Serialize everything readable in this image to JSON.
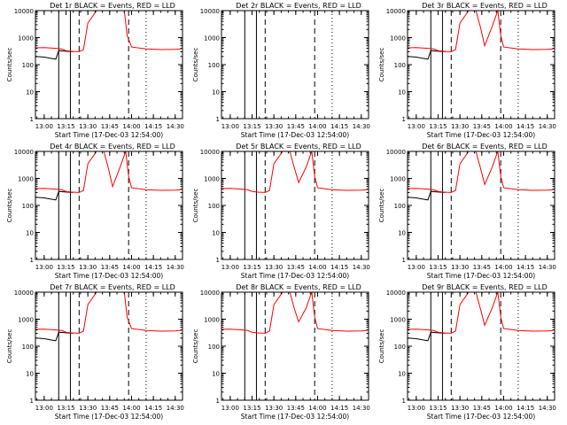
{
  "figure": {
    "title_template": "Det {id}r  BLACK = Events, RED = LLD",
    "xlabel": "Start Time (17-Dec-03 12:54:00)",
    "ylabel": "Counts/sec"
  },
  "chart_data": [
    {
      "type": "line",
      "detector": "1",
      "title": "Det 1r  BLACK = Events, RED = LLD",
      "xlabel": "Start Time (17-Dec-03 12:54:00)",
      "ylabel": "Counts/sec",
      "xlim": [
        "12:54",
        "14:35"
      ],
      "x_ticks": [
        "13:00",
        "13:15",
        "13:30",
        "13:45",
        "14:00",
        "14:15",
        "14:30"
      ],
      "ylim": [
        1,
        10000
      ],
      "y_scale": "log",
      "y_ticks": [
        "1",
        "10",
        "100",
        "1000",
        "10000"
      ],
      "series": [
        {
          "name": "Events",
          "color": "black",
          "x": [
            "12:54",
            "13:00",
            "13:05",
            "13:08",
            "13:10",
            "13:16",
            "13:20"
          ],
          "values": [
            200,
            190,
            170,
            160,
            330,
            310,
            300
          ]
        },
        {
          "name": "LLD",
          "color": "red",
          "x": [
            "12:54",
            "13:00",
            "13:08",
            "13:12",
            "13:15",
            "13:19",
            "13:24",
            "13:27",
            "13:30",
            "13:36",
            "13:43",
            "13:48",
            "13:55",
            "13:57",
            "14:00",
            "14:10",
            "14:20",
            "14:30",
            "14:34"
          ],
          "values": [
            420,
            430,
            400,
            380,
            330,
            310,
            300,
            360,
            3500,
            10000,
            10000,
            10000,
            10000,
            1200,
            450,
            380,
            360,
            370,
            380
          ]
        }
      ],
      "markers": {
        "solid_vertical": [
          "13:10",
          "13:18"
        ],
        "dashed_vertical": [
          "13:24",
          "13:58"
        ],
        "dotted_vertical": [
          "14:10"
        ]
      }
    },
    {
      "type": "line",
      "detector": "2",
      "title": "Det 2r  BLACK = Events, RED = LLD",
      "xlabel": "Start Time (17-Dec-03 12:54:00)",
      "ylabel": "Counts/sec",
      "xlim": [
        "12:54",
        "14:35"
      ],
      "x_ticks": [
        "13:00",
        "13:15",
        "13:30",
        "13:45",
        "14:00",
        "14:15",
        "14:30"
      ],
      "ylim": [
        1,
        10000
      ],
      "y_scale": "log",
      "y_ticks": [
        "1",
        "10",
        "100",
        "1000",
        "10000"
      ],
      "series": [],
      "markers": {
        "solid_vertical": [
          "13:10",
          "13:18"
        ],
        "dashed_vertical": [
          "13:24",
          "13:58"
        ],
        "dotted_vertical": [
          "14:10"
        ]
      }
    },
    {
      "type": "line",
      "detector": "3",
      "title": "Det 3r  BLACK = Events, RED = LLD",
      "xlabel": "Start Time (17-Dec-03 12:54:00)",
      "ylabel": "Counts/sec",
      "xlim": [
        "12:54",
        "14:35"
      ],
      "x_ticks": [
        "13:00",
        "13:15",
        "13:30",
        "13:45",
        "14:00",
        "14:15",
        "14:30"
      ],
      "ylim": [
        1,
        10000
      ],
      "y_scale": "log",
      "y_ticks": [
        "1",
        "10",
        "100",
        "1000",
        "10000"
      ],
      "series": [
        {
          "name": "Events",
          "color": "black",
          "x": [
            "12:54",
            "13:00",
            "13:05",
            "13:08",
            "13:10",
            "13:16",
            "13:20"
          ],
          "values": [
            200,
            190,
            170,
            160,
            330,
            310,
            300
          ]
        },
        {
          "name": "LLD",
          "color": "red",
          "x": [
            "12:54",
            "13:00",
            "13:08",
            "13:12",
            "13:15",
            "13:19",
            "13:24",
            "13:27",
            "13:30",
            "13:36",
            "13:41",
            "13:44",
            "13:47",
            "13:52",
            "13:56",
            "13:58",
            "14:00",
            "14:10",
            "14:20",
            "14:30",
            "14:34"
          ],
          "values": [
            420,
            430,
            400,
            380,
            330,
            310,
            300,
            360,
            3500,
            10000,
            10000,
            2500,
            500,
            2500,
            10000,
            1200,
            450,
            380,
            360,
            370,
            380
          ]
        }
      ],
      "markers": {
        "solid_vertical": [
          "13:10",
          "13:18"
        ],
        "dashed_vertical": [
          "13:24",
          "13:58"
        ],
        "dotted_vertical": [
          "14:10"
        ]
      }
    },
    {
      "type": "line",
      "detector": "4",
      "title": "Det 4r  BLACK = Events, RED = LLD",
      "xlabel": "Start Time (17-Dec-03 12:54:00)",
      "ylabel": "Counts/sec",
      "xlim": [
        "12:54",
        "14:35"
      ],
      "x_ticks": [
        "13:00",
        "13:15",
        "13:30",
        "13:45",
        "14:00",
        "14:15",
        "14:30"
      ],
      "ylim": [
        1,
        10000
      ],
      "y_scale": "log",
      "y_ticks": [
        "1",
        "10",
        "100",
        "1000",
        "10000"
      ],
      "series": [
        {
          "name": "Events",
          "color": "black",
          "x": [
            "12:54",
            "13:00",
            "13:05",
            "13:08",
            "13:10",
            "13:16",
            "13:20"
          ],
          "values": [
            200,
            190,
            170,
            160,
            330,
            310,
            300
          ]
        },
        {
          "name": "LLD",
          "color": "red",
          "x": [
            "12:54",
            "13:00",
            "13:08",
            "13:12",
            "13:15",
            "13:19",
            "13:24",
            "13:27",
            "13:30",
            "13:36",
            "13:41",
            "13:44",
            "13:47",
            "13:52",
            "13:56",
            "13:58",
            "14:00",
            "14:10",
            "14:20",
            "14:30",
            "14:34"
          ],
          "values": [
            420,
            430,
            400,
            380,
            330,
            310,
            300,
            360,
            3500,
            10000,
            10000,
            2500,
            500,
            2500,
            10000,
            1200,
            450,
            380,
            360,
            370,
            380
          ]
        }
      ],
      "markers": {
        "solid_vertical": [
          "13:10",
          "13:18"
        ],
        "dashed_vertical": [
          "13:24",
          "13:58"
        ],
        "dotted_vertical": [
          "14:10"
        ]
      }
    },
    {
      "type": "line",
      "detector": "5",
      "title": "Det 5r  BLACK = Events, RED = LLD",
      "xlabel": "Start Time (17-Dec-03 12:54:00)",
      "ylabel": "Counts/sec",
      "xlim": [
        "12:54",
        "14:35"
      ],
      "x_ticks": [
        "13:00",
        "13:15",
        "13:30",
        "13:45",
        "14:00",
        "14:15",
        "14:30"
      ],
      "ylim": [
        1,
        10000
      ],
      "y_scale": "log",
      "y_ticks": [
        "1",
        "10",
        "100",
        "1000",
        "10000"
      ],
      "series": [
        {
          "name": "LLD",
          "color": "red",
          "x": [
            "12:54",
            "13:00",
            "13:08",
            "13:12",
            "13:15",
            "13:19",
            "13:24",
            "13:27",
            "13:30",
            "13:36",
            "13:41",
            "13:44",
            "13:47",
            "13:52",
            "13:56",
            "13:58",
            "14:00",
            "14:10",
            "14:20",
            "14:30",
            "14:34"
          ],
          "values": [
            420,
            430,
            400,
            380,
            330,
            310,
            300,
            360,
            3500,
            10000,
            10000,
            2500,
            700,
            2500,
            10000,
            1200,
            450,
            380,
            360,
            370,
            380
          ]
        }
      ],
      "markers": {
        "solid_vertical": [
          "13:10",
          "13:18"
        ],
        "dashed_vertical": [
          "13:24",
          "13:58"
        ],
        "dotted_vertical": [
          "14:10"
        ]
      }
    },
    {
      "type": "line",
      "detector": "6",
      "title": "Det 6r  BLACK = Events, RED = LLD",
      "xlabel": "Start Time (17-Dec-03 12:54:00)",
      "ylabel": "Counts/sec",
      "xlim": [
        "12:54",
        "14:35"
      ],
      "x_ticks": [
        "13:00",
        "13:15",
        "13:30",
        "13:45",
        "14:00",
        "14:15",
        "14:30"
      ],
      "ylim": [
        1,
        10000
      ],
      "y_scale": "log",
      "y_ticks": [
        "1",
        "10",
        "100",
        "1000",
        "10000"
      ],
      "series": [
        {
          "name": "Events",
          "color": "black",
          "x": [
            "12:54",
            "13:00",
            "13:05",
            "13:08",
            "13:10",
            "13:16",
            "13:20"
          ],
          "values": [
            200,
            190,
            170,
            160,
            330,
            310,
            300
          ]
        },
        {
          "name": "LLD",
          "color": "red",
          "x": [
            "12:54",
            "13:00",
            "13:08",
            "13:12",
            "13:15",
            "13:19",
            "13:24",
            "13:27",
            "13:30",
            "13:36",
            "13:41",
            "13:44",
            "13:47",
            "13:52",
            "13:56",
            "13:58",
            "14:00",
            "14:10",
            "14:20",
            "14:30",
            "14:34"
          ],
          "values": [
            420,
            430,
            400,
            380,
            330,
            310,
            300,
            360,
            3500,
            10000,
            10000,
            2500,
            600,
            2500,
            10000,
            1200,
            450,
            380,
            360,
            370,
            380
          ]
        }
      ],
      "markers": {
        "solid_vertical": [
          "13:10",
          "13:18"
        ],
        "dashed_vertical": [
          "13:24",
          "13:58"
        ],
        "dotted_vertical": [
          "14:10"
        ]
      }
    },
    {
      "type": "line",
      "detector": "7",
      "title": "Det 7r  BLACK = Events, RED = LLD",
      "xlabel": "Start Time (17-Dec-03 12:54:00)",
      "ylabel": "Counts/sec",
      "xlim": [
        "12:54",
        "14:35"
      ],
      "x_ticks": [
        "13:00",
        "13:15",
        "13:30",
        "13:45",
        "14:00",
        "14:15",
        "14:30"
      ],
      "ylim": [
        1,
        10000
      ],
      "y_scale": "log",
      "y_ticks": [
        "1",
        "10",
        "100",
        "1000",
        "10000"
      ],
      "series": [
        {
          "name": "Events",
          "color": "black",
          "x": [
            "12:54",
            "13:00",
            "13:05",
            "13:08",
            "13:10",
            "13:16",
            "13:20"
          ],
          "values": [
            200,
            190,
            170,
            160,
            330,
            310,
            300
          ]
        },
        {
          "name": "LLD",
          "color": "red",
          "x": [
            "12:54",
            "13:00",
            "13:08",
            "13:12",
            "13:15",
            "13:19",
            "13:24",
            "13:27",
            "13:30",
            "13:36",
            "13:43",
            "13:48",
            "13:55",
            "13:57",
            "14:00",
            "14:10",
            "14:20",
            "14:30",
            "14:34"
          ],
          "values": [
            420,
            430,
            400,
            380,
            330,
            310,
            300,
            360,
            3500,
            10000,
            10000,
            10000,
            10000,
            1200,
            450,
            380,
            360,
            370,
            380
          ]
        }
      ],
      "markers": {
        "solid_vertical": [
          "13:10",
          "13:18"
        ],
        "dashed_vertical": [
          "13:24",
          "13:58"
        ],
        "dotted_vertical": [
          "14:10"
        ]
      }
    },
    {
      "type": "line",
      "detector": "8",
      "title": "Det 8r  BLACK = Events, RED = LLD",
      "xlabel": "Start Time (17-Dec-03 12:54:00)",
      "ylabel": "Counts/sec",
      "xlim": [
        "12:54",
        "14:35"
      ],
      "x_ticks": [
        "13:00",
        "13:15",
        "13:30",
        "13:45",
        "14:00",
        "14:15",
        "14:30"
      ],
      "ylim": [
        1,
        10000
      ],
      "y_scale": "log",
      "y_ticks": [
        "1",
        "10",
        "100",
        "1000",
        "10000"
      ],
      "series": [
        {
          "name": "LLD",
          "color": "red",
          "x": [
            "12:54",
            "13:00",
            "13:08",
            "13:12",
            "13:15",
            "13:19",
            "13:24",
            "13:27",
            "13:30",
            "13:36",
            "13:41",
            "13:44",
            "13:47",
            "13:52",
            "13:56",
            "13:58",
            "14:00",
            "14:10",
            "14:20",
            "14:30",
            "14:34"
          ],
          "values": [
            420,
            430,
            400,
            380,
            330,
            310,
            300,
            360,
            3500,
            10000,
            10000,
            2500,
            800,
            2500,
            10000,
            1200,
            450,
            380,
            360,
            370,
            380
          ]
        }
      ],
      "markers": {
        "solid_vertical": [
          "13:10",
          "13:18"
        ],
        "dashed_vertical": [
          "13:24",
          "13:58"
        ],
        "dotted_vertical": [
          "14:10"
        ]
      }
    },
    {
      "type": "line",
      "detector": "9",
      "title": "Det 9r  BLACK = Events, RED = LLD",
      "xlabel": "Start Time (17-Dec-03 12:54:00)",
      "ylabel": "Counts/sec",
      "xlim": [
        "12:54",
        "14:35"
      ],
      "x_ticks": [
        "13:00",
        "13:15",
        "13:30",
        "13:45",
        "14:00",
        "14:15",
        "14:30"
      ],
      "ylim": [
        1,
        10000
      ],
      "y_scale": "log",
      "y_ticks": [
        "1",
        "10",
        "100",
        "1000",
        "10000"
      ],
      "series": [
        {
          "name": "Events",
          "color": "black",
          "x": [
            "12:54",
            "13:00",
            "13:05",
            "13:08",
            "13:10",
            "13:16",
            "13:20"
          ],
          "values": [
            200,
            190,
            170,
            160,
            330,
            310,
            300
          ]
        },
        {
          "name": "LLD",
          "color": "red",
          "x": [
            "12:54",
            "13:00",
            "13:08",
            "13:12",
            "13:15",
            "13:19",
            "13:24",
            "13:27",
            "13:30",
            "13:36",
            "13:41",
            "13:44",
            "13:47",
            "13:52",
            "13:56",
            "13:58",
            "14:00",
            "14:10",
            "14:20",
            "14:30",
            "14:34"
          ],
          "values": [
            420,
            430,
            400,
            380,
            330,
            310,
            300,
            360,
            3500,
            10000,
            10000,
            2500,
            600,
            2500,
            10000,
            1200,
            450,
            380,
            360,
            370,
            380
          ]
        }
      ],
      "markers": {
        "solid_vertical": [
          "13:10",
          "13:18"
        ],
        "dashed_vertical": [
          "13:24",
          "13:58"
        ],
        "dotted_vertical": [
          "14:10"
        ]
      }
    }
  ]
}
